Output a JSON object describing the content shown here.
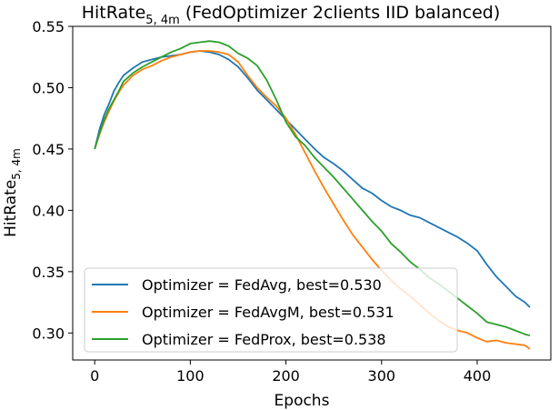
{
  "chart_data": {
    "type": "line",
    "title": {
      "base": "HitRate",
      "sub": "5, 4m",
      "rest": " (FedOptimizer 2clients IID balanced)"
    },
    "xlabel": "Epochs",
    "ylabel": {
      "base": "HitRate",
      "sub": "5, 4m"
    },
    "xlim": [
      -23,
      477
    ],
    "ylim": [
      0.278,
      0.55
    ],
    "xticks": [
      0,
      100,
      200,
      300,
      400
    ],
    "xtick_labels": [
      "0",
      "100",
      "200",
      "300",
      "400"
    ],
    "yticks": [
      0.3,
      0.35,
      0.4,
      0.45,
      0.5,
      0.55
    ],
    "ytick_labels": [
      "0.30",
      "0.35",
      "0.40",
      "0.45",
      "0.50",
      "0.55"
    ],
    "grid": false,
    "legend_position": "lower-left",
    "series": [
      {
        "name": "Optimizer = FedAvg, best=0.530",
        "color": "#1f77b4",
        "x": [
          0,
          5,
          10,
          15,
          20,
          25,
          30,
          40,
          50,
          60,
          70,
          80,
          90,
          100,
          110,
          120,
          130,
          140,
          150,
          160,
          170,
          180,
          190,
          200,
          210,
          220,
          230,
          240,
          250,
          260,
          270,
          280,
          290,
          300,
          310,
          320,
          330,
          340,
          350,
          360,
          370,
          380,
          390,
          400,
          410,
          420,
          430,
          440,
          450,
          455
        ],
        "y": [
          0.45,
          0.466,
          0.478,
          0.487,
          0.497,
          0.504,
          0.51,
          0.516,
          0.521,
          0.523,
          0.525,
          0.526,
          0.527,
          0.529,
          0.53,
          0.529,
          0.527,
          0.523,
          0.517,
          0.508,
          0.498,
          0.49,
          0.482,
          0.474,
          0.466,
          0.458,
          0.45,
          0.443,
          0.438,
          0.432,
          0.425,
          0.418,
          0.414,
          0.408,
          0.403,
          0.4,
          0.396,
          0.394,
          0.39,
          0.386,
          0.382,
          0.378,
          0.373,
          0.367,
          0.356,
          0.346,
          0.338,
          0.33,
          0.325,
          0.321
        ]
      },
      {
        "name": "Optimizer = FedAvgM, best=0.531",
        "color": "#ff7f0e",
        "x": [
          0,
          5,
          10,
          15,
          20,
          25,
          30,
          40,
          50,
          60,
          70,
          80,
          90,
          100,
          110,
          120,
          130,
          140,
          150,
          160,
          170,
          180,
          190,
          200,
          210,
          220,
          230,
          240,
          250,
          260,
          270,
          280,
          290,
          300,
          310,
          320,
          330,
          340,
          350,
          360,
          370,
          380,
          390,
          400,
          410,
          420,
          430,
          440,
          450,
          455
        ],
        "y": [
          0.45,
          0.462,
          0.472,
          0.481,
          0.489,
          0.496,
          0.502,
          0.51,
          0.515,
          0.518,
          0.522,
          0.525,
          0.527,
          0.529,
          0.53,
          0.53,
          0.529,
          0.527,
          0.521,
          0.51,
          0.5,
          0.492,
          0.485,
          0.475,
          0.462,
          0.447,
          0.432,
          0.418,
          0.405,
          0.392,
          0.38,
          0.37,
          0.36,
          0.351,
          0.343,
          0.336,
          0.33,
          0.323,
          0.316,
          0.31,
          0.305,
          0.302,
          0.3,
          0.296,
          0.293,
          0.294,
          0.292,
          0.291,
          0.29,
          0.287
        ]
      },
      {
        "name": "Optimizer = FedProx, best=0.538",
        "color": "#2ca02c",
        "x": [
          0,
          5,
          10,
          15,
          20,
          25,
          30,
          40,
          50,
          60,
          70,
          80,
          90,
          100,
          110,
          120,
          130,
          140,
          150,
          160,
          170,
          180,
          190,
          200,
          210,
          220,
          230,
          240,
          250,
          260,
          270,
          280,
          290,
          300,
          310,
          320,
          330,
          340,
          350,
          360,
          370,
          380,
          390,
          400,
          410,
          420,
          430,
          440,
          450,
          455
        ],
        "y": [
          0.45,
          0.463,
          0.474,
          0.483,
          0.49,
          0.497,
          0.505,
          0.512,
          0.517,
          0.521,
          0.525,
          0.529,
          0.532,
          0.536,
          0.537,
          0.538,
          0.537,
          0.534,
          0.528,
          0.524,
          0.518,
          0.506,
          0.49,
          0.472,
          0.46,
          0.453,
          0.443,
          0.435,
          0.427,
          0.418,
          0.409,
          0.4,
          0.391,
          0.383,
          0.373,
          0.366,
          0.358,
          0.352,
          0.345,
          0.34,
          0.334,
          0.328,
          0.322,
          0.316,
          0.309,
          0.307,
          0.305,
          0.302,
          0.299,
          0.298
        ]
      }
    ]
  }
}
